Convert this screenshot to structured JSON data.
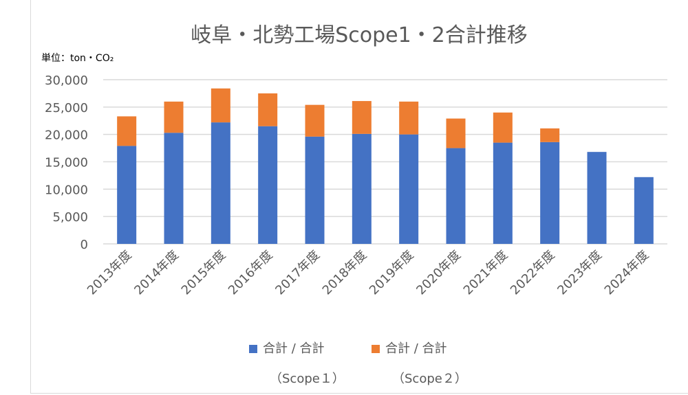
{
  "chart_data": {
    "type": "bar",
    "stacked": true,
    "title": "岐阜・北勢工場Scope1・2合計推移",
    "ylabel": "単位：ton・CO₂",
    "xlabel": "",
    "ylim": [
      0,
      30000
    ],
    "yticks": [
      "0",
      "5,000",
      "10,000",
      "15,000",
      "20,000",
      "25,000",
      "30,000"
    ],
    "ytick_values": [
      0,
      5000,
      10000,
      15000,
      20000,
      25000,
      30000
    ],
    "grid": true,
    "legend_position": "bottom",
    "categories": [
      "2013年度",
      "2014年度",
      "2015年度",
      "2016年度",
      "2017年度",
      "2018年度",
      "2019年度",
      "2020年度",
      "2021年度",
      "2022年度",
      "2023年度",
      "2024年度"
    ],
    "series": [
      {
        "name": "合計 / 合計",
        "name2": "（Scope１）",
        "color": "#4472c4",
        "values": [
          17900,
          20300,
          22200,
          21500,
          19600,
          20100,
          20000,
          17500,
          18500,
          18600,
          16800,
          12200
        ]
      },
      {
        "name": "合計 / 合計",
        "name2": "（Scope２）",
        "color": "#ed7d31",
        "values": [
          5400,
          5700,
          6200,
          6000,
          5800,
          6000,
          6000,
          5400,
          5500,
          2500,
          0,
          0
        ]
      }
    ]
  }
}
